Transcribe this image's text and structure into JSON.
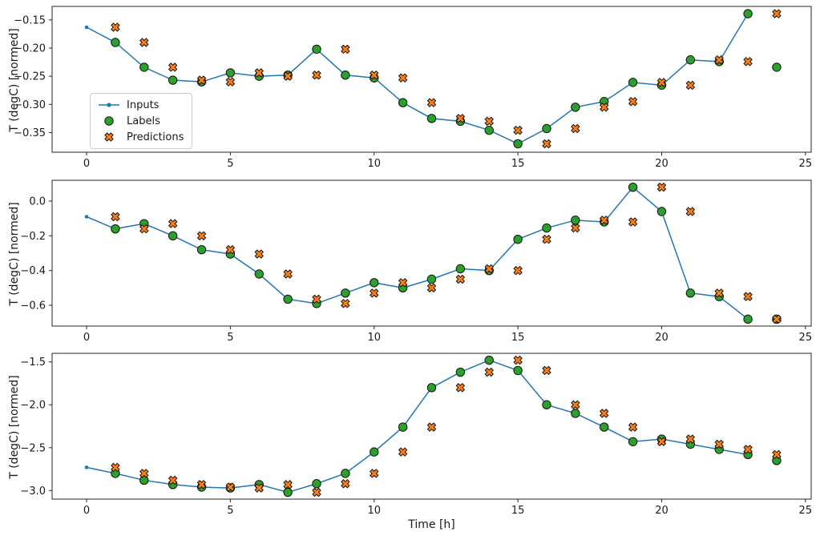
{
  "xlabel": "Time [h]",
  "colors": {
    "inputs": "#1f77b4",
    "labels": "#2ca02c",
    "predictions": "#ff7f0e",
    "marker_edge": "#141414",
    "spine": "#262626",
    "legend_border": "#cccccc"
  },
  "legend": {
    "items": [
      {
        "label": "Inputs"
      },
      {
        "label": "Labels"
      },
      {
        "label": "Predictions"
      }
    ]
  },
  "chart_data": [
    {
      "type": "line",
      "ylabel": "T (degC) [normed]",
      "xlim": [
        -1.2,
        25.2
      ],
      "ylim": [
        -0.385,
        -0.126
      ],
      "xticks": [
        0,
        5,
        10,
        15,
        20,
        25
      ],
      "xtick_labels": [
        "0",
        "5",
        "10",
        "15",
        "20",
        "25"
      ],
      "yticks": [
        -0.15,
        -0.2,
        -0.25,
        -0.3,
        -0.35
      ],
      "ytick_labels": [
        "−0.15",
        "−0.20",
        "−0.25",
        "−0.30",
        "−0.35"
      ],
      "series": [
        {
          "name": "Inputs",
          "style": "line+marker",
          "x": [
            0,
            1,
            2,
            3,
            4,
            5,
            6,
            7,
            8,
            9,
            10,
            11,
            12,
            13,
            14,
            15,
            16,
            17,
            18,
            19,
            20,
            21,
            22,
            23
          ],
          "y": [
            -0.163,
            -0.19,
            -0.234,
            -0.257,
            -0.26,
            -0.244,
            -0.25,
            -0.248,
            -0.202,
            -0.248,
            -0.253,
            -0.297,
            -0.325,
            -0.33,
            -0.346,
            -0.37,
            -0.343,
            -0.305,
            -0.295,
            -0.261,
            -0.266,
            -0.221,
            -0.224,
            -0.139
          ]
        },
        {
          "name": "Labels",
          "style": "scatter-circle",
          "x": [
            1,
            2,
            3,
            4,
            5,
            6,
            7,
            8,
            9,
            10,
            11,
            12,
            13,
            14,
            15,
            16,
            17,
            18,
            19,
            20,
            21,
            22,
            23,
            24
          ],
          "y": [
            -0.19,
            -0.234,
            -0.257,
            -0.26,
            -0.244,
            -0.25,
            -0.248,
            -0.202,
            -0.248,
            -0.253,
            -0.297,
            -0.325,
            -0.33,
            -0.346,
            -0.37,
            -0.343,
            -0.305,
            -0.295,
            -0.261,
            -0.266,
            -0.221,
            -0.224,
            -0.139,
            -0.234
          ]
        },
        {
          "name": "Predictions",
          "style": "scatter-x",
          "x": [
            1,
            2,
            3,
            4,
            5,
            6,
            7,
            8,
            9,
            10,
            11,
            12,
            13,
            14,
            15,
            16,
            17,
            18,
            19,
            20,
            21,
            22,
            23,
            24
          ],
          "y": [
            -0.163,
            -0.19,
            -0.234,
            -0.257,
            -0.26,
            -0.244,
            -0.25,
            -0.248,
            -0.202,
            -0.248,
            -0.253,
            -0.297,
            -0.325,
            -0.33,
            -0.346,
            -0.37,
            -0.343,
            -0.305,
            -0.295,
            -0.261,
            -0.266,
            -0.221,
            -0.224,
            -0.139
          ]
        }
      ]
    },
    {
      "type": "line",
      "ylabel": "T (degC) [normed]",
      "xlim": [
        -1.2,
        25.2
      ],
      "ylim": [
        -0.72,
        0.12
      ],
      "xticks": [
        0,
        5,
        10,
        15,
        20,
        25
      ],
      "xtick_labels": [
        "0",
        "5",
        "10",
        "15",
        "20",
        "25"
      ],
      "yticks": [
        0.0,
        -0.2,
        -0.4,
        -0.6
      ],
      "ytick_labels": [
        "0.0",
        "−0.2",
        "−0.4",
        "−0.6"
      ],
      "series": [
        {
          "name": "Inputs",
          "style": "line+marker",
          "x": [
            0,
            1,
            2,
            3,
            4,
            5,
            6,
            7,
            8,
            9,
            10,
            11,
            12,
            13,
            14,
            15,
            16,
            17,
            18,
            19,
            20,
            21,
            22,
            23
          ],
          "y": [
            -0.09,
            -0.16,
            -0.13,
            -0.2,
            -0.28,
            -0.305,
            -0.42,
            -0.565,
            -0.59,
            -0.53,
            -0.47,
            -0.5,
            -0.45,
            -0.39,
            -0.4,
            -0.22,
            -0.155,
            -0.11,
            -0.12,
            0.08,
            -0.06,
            -0.53,
            -0.55,
            -0.68
          ]
        },
        {
          "name": "Labels",
          "style": "scatter-circle",
          "x": [
            1,
            2,
            3,
            4,
            5,
            6,
            7,
            8,
            9,
            10,
            11,
            12,
            13,
            14,
            15,
            16,
            17,
            18,
            19,
            20,
            21,
            22,
            23,
            24
          ],
          "y": [
            -0.16,
            -0.13,
            -0.2,
            -0.28,
            -0.305,
            -0.42,
            -0.565,
            -0.59,
            -0.53,
            -0.47,
            -0.5,
            -0.45,
            -0.39,
            -0.4,
            -0.22,
            -0.155,
            -0.11,
            -0.12,
            0.08,
            -0.06,
            -0.53,
            -0.55,
            -0.68,
            -0.68
          ]
        },
        {
          "name": "Predictions",
          "style": "scatter-x",
          "x": [
            1,
            2,
            3,
            4,
            5,
            6,
            7,
            8,
            9,
            10,
            11,
            12,
            13,
            14,
            15,
            16,
            17,
            18,
            19,
            20,
            21,
            22,
            23,
            24
          ],
          "y": [
            -0.09,
            -0.16,
            -0.13,
            -0.2,
            -0.28,
            -0.305,
            -0.42,
            -0.565,
            -0.59,
            -0.53,
            -0.47,
            -0.5,
            -0.45,
            -0.39,
            -0.4,
            -0.22,
            -0.155,
            -0.11,
            -0.12,
            0.08,
            -0.06,
            -0.53,
            -0.55,
            -0.68
          ]
        }
      ]
    },
    {
      "type": "line",
      "ylabel": "T (degC) [normed]",
      "xlim": [
        -1.2,
        25.2
      ],
      "ylim": [
        -3.1,
        -1.4
      ],
      "xticks": [
        0,
        5,
        10,
        15,
        20,
        25
      ],
      "xtick_labels": [
        "0",
        "5",
        "10",
        "15",
        "20",
        "25"
      ],
      "yticks": [
        -1.5,
        -2.0,
        -2.5,
        -3.0
      ],
      "ytick_labels": [
        "−1.5",
        "−2.0",
        "−2.5",
        "−3.0"
      ],
      "series": [
        {
          "name": "Inputs",
          "style": "line+marker",
          "x": [
            0,
            1,
            2,
            3,
            4,
            5,
            6,
            7,
            8,
            9,
            10,
            11,
            12,
            13,
            14,
            15,
            16,
            17,
            18,
            19,
            20,
            21,
            22,
            23
          ],
          "y": [
            -2.73,
            -2.8,
            -2.88,
            -2.93,
            -2.96,
            -2.97,
            -2.93,
            -3.02,
            -2.92,
            -2.8,
            -2.55,
            -2.26,
            -1.8,
            -1.62,
            -1.48,
            -1.6,
            -2.0,
            -2.1,
            -2.26,
            -2.43,
            -2.4,
            -2.46,
            -2.52,
            -2.58
          ]
        },
        {
          "name": "Labels",
          "style": "scatter-circle",
          "x": [
            1,
            2,
            3,
            4,
            5,
            6,
            7,
            8,
            9,
            10,
            11,
            12,
            13,
            14,
            15,
            16,
            17,
            18,
            19,
            20,
            21,
            22,
            23,
            24
          ],
          "y": [
            -2.8,
            -2.88,
            -2.93,
            -2.96,
            -2.97,
            -2.93,
            -3.02,
            -2.92,
            -2.8,
            -2.55,
            -2.26,
            -1.8,
            -1.62,
            -1.48,
            -1.6,
            -2.0,
            -2.1,
            -2.26,
            -2.43,
            -2.4,
            -2.46,
            -2.52,
            -2.58,
            -2.65
          ]
        },
        {
          "name": "Predictions",
          "style": "scatter-x",
          "x": [
            1,
            2,
            3,
            4,
            5,
            6,
            7,
            8,
            9,
            10,
            11,
            12,
            13,
            14,
            15,
            16,
            17,
            18,
            19,
            20,
            21,
            22,
            23,
            24
          ],
          "y": [
            -2.73,
            -2.8,
            -2.88,
            -2.93,
            -2.96,
            -2.97,
            -2.93,
            -3.02,
            -2.92,
            -2.8,
            -2.55,
            -2.26,
            -1.8,
            -1.62,
            -1.48,
            -1.6,
            -2.0,
            -2.1,
            -2.26,
            -2.43,
            -2.4,
            -2.46,
            -2.52,
            -2.58
          ]
        }
      ]
    }
  ]
}
